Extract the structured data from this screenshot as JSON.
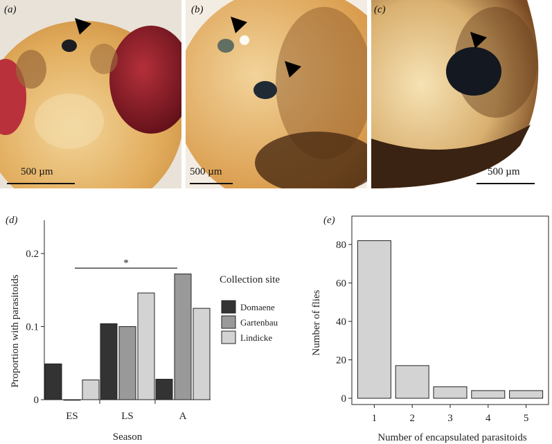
{
  "photos": [
    {
      "label": "(a)",
      "scale": "500 µm"
    },
    {
      "label": "(b)",
      "scale": "500 µm"
    },
    {
      "label": "(c)",
      "scale": "500 µm"
    }
  ],
  "chart_data": [
    {
      "panel": "(d)",
      "type": "bar",
      "xlabel": "Season",
      "ylabel": "Proportion with parasitoids",
      "categories": [
        "ES",
        "LS",
        "A"
      ],
      "ylim": [
        0,
        0.2
      ],
      "yticks": [
        "0",
        "0.1",
        "0.2"
      ],
      "legend_title": "Collection site",
      "legend_position": "right",
      "series": [
        {
          "name": "Domaene",
          "color": "#333333",
          "values": [
            0.049,
            0.104,
            0.028
          ]
        },
        {
          "name": "Gartenbau",
          "color": "#999999",
          "values": [
            0.0,
            0.1,
            0.172
          ]
        },
        {
          "name": "Lindicke",
          "color": "#d3d3d3",
          "values": [
            0.027,
            0.146,
            0.125
          ]
        }
      ],
      "annotation": "*",
      "grid": false
    },
    {
      "panel": "(e)",
      "type": "bar",
      "xlabel": "Number of encapsulated parasitoids",
      "ylabel": "Number of flies",
      "categories": [
        "1",
        "2",
        "3",
        "4",
        "5"
      ],
      "values": [
        82,
        17,
        6,
        4,
        4
      ],
      "ylim": [
        0,
        90
      ],
      "yticks": [
        "0",
        "20",
        "40",
        "60",
        "80"
      ],
      "bar_color": "#d3d3d3",
      "grid": false
    }
  ]
}
